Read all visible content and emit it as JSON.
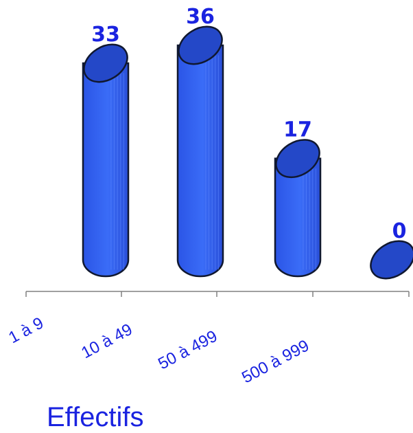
{
  "chart_data": {
    "type": "bar",
    "title": "",
    "xlabel": "Effectifs",
    "ylabel": "",
    "categories": [
      "1 à 9",
      "10 à 49",
      "50 à 499",
      "500 à 999"
    ],
    "series": [
      {
        "values": [
          33,
          36,
          17,
          0
        ]
      }
    ],
    "data_labels": [
      "33",
      "36",
      "17",
      "0"
    ],
    "ylim": [
      0,
      36
    ],
    "grid": false,
    "legend": "none"
  },
  "colors": {
    "bar_fill": "#2e5ef0",
    "bar_top": "#2448c8",
    "label": "#1a23e0",
    "axis": "#808080"
  }
}
